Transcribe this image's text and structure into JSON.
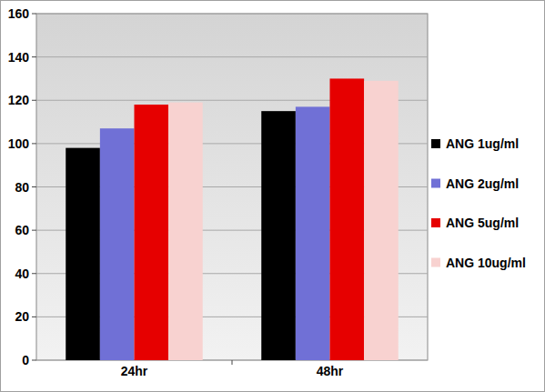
{
  "chart_data": {
    "type": "bar",
    "categories": [
      "24hr",
      "48hr"
    ],
    "series": [
      {
        "name": "ANG 1ug/ml",
        "color": "#000000",
        "values": [
          98,
          115
        ]
      },
      {
        "name": "ANG 2ug/ml",
        "color": "#7070d6",
        "values": [
          107,
          117
        ]
      },
      {
        "name": "ANG 5ug/ml",
        "color": "#e60000",
        "values": [
          118,
          130
        ]
      },
      {
        "name": "ANG 10ug/ml",
        "color": "#f8d2d0",
        "values": [
          119,
          129
        ]
      }
    ],
    "ylim": [
      0,
      160
    ],
    "yticks": [
      0,
      20,
      40,
      60,
      80,
      100,
      120,
      140,
      160
    ],
    "grid": true,
    "legend": "right"
  }
}
